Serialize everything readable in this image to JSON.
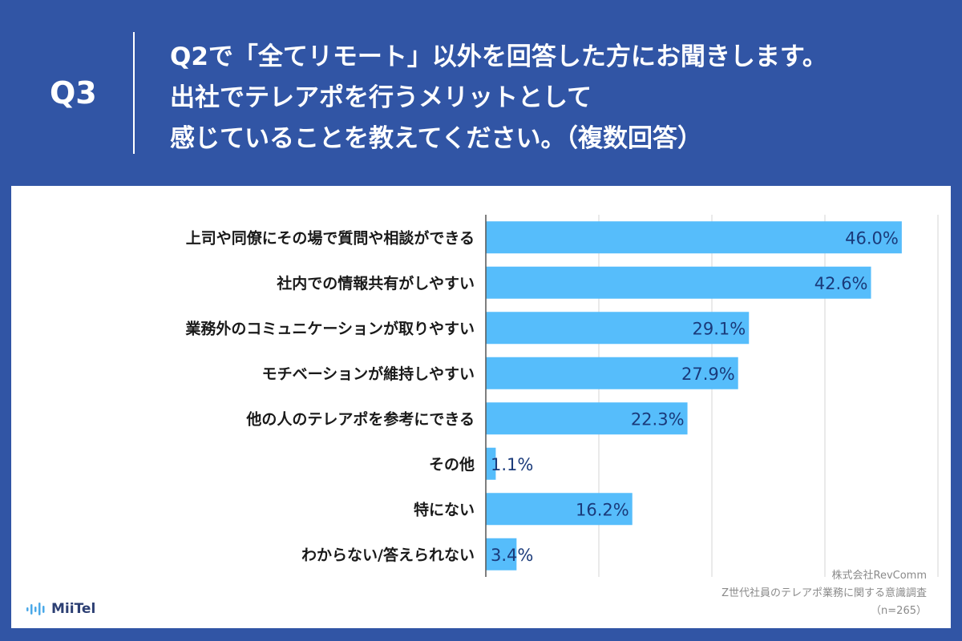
{
  "header": {
    "q_label": "Q3",
    "question_lines": [
      "Q2で「全てリモート」以外を回答した方にお聞きします。",
      "出社でテレアポを行うメリットとして",
      "感じていることを教えてください。（複数回答）"
    ]
  },
  "chart_data": {
    "type": "bar",
    "orientation": "horizontal",
    "categories": [
      "上司や同僚にその場で質問や相談ができる",
      "社内での情報共有がしやすい",
      "業務外のコミュニケーションが取りやすい",
      "モチベーションが維持しやすい",
      "他の人のテレアポを参考にできる",
      "その他",
      "特にない",
      "わからない/答えられない"
    ],
    "values": [
      46.0,
      42.6,
      29.1,
      27.9,
      22.3,
      1.1,
      16.2,
      3.4
    ],
    "value_labels": [
      "46.0%",
      "42.6%",
      "29.1%",
      "27.9%",
      "22.3%",
      "1.1%",
      "16.2%",
      "3.4%"
    ],
    "xlim": [
      0,
      50
    ],
    "gridlines": [
      0,
      12.5,
      25,
      37.5,
      50
    ],
    "unit": "%",
    "bar_color": "#56bdfb",
    "label_color": "#1a3a7a"
  },
  "source": {
    "company": "株式会社RevComm",
    "survey": "Z世代社員のテレアポ業務に関する意識調査",
    "sample": "（n=265）"
  },
  "logo": {
    "name": "MiiTel",
    "icon": "sound-wave-icon"
  },
  "colors": {
    "background": "#3155a5",
    "panel": "#ffffff",
    "text": "#1a1a1a"
  }
}
